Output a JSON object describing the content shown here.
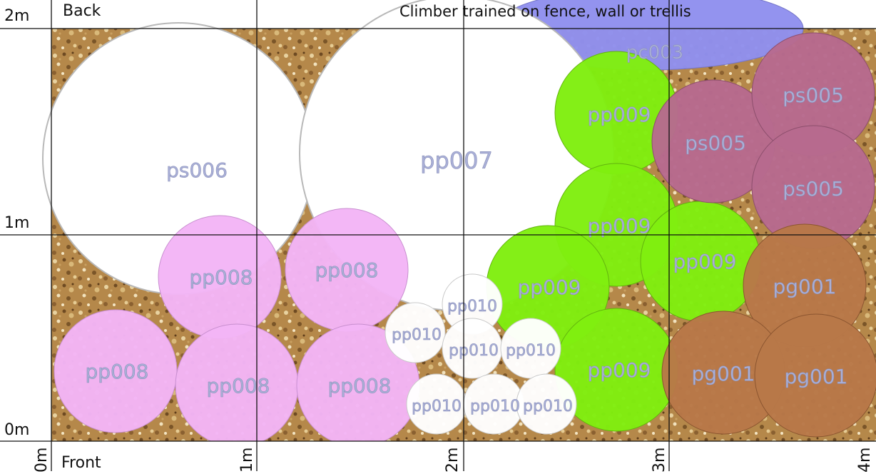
{
  "title": "Climber trained on fence, wall or trellis",
  "edge_labels": {
    "back": "Back",
    "front": "Front"
  },
  "y_axis": [
    "2m",
    "1m",
    "0m"
  ],
  "x_axis": [
    "0m",
    "1m",
    "2m",
    "3m",
    "4m"
  ],
  "colors": {
    "pink": "#f3b5f6",
    "green": "#80ee10",
    "mauve": "#b76a8e",
    "brown": "#b87848",
    "blue": "#8f90ee",
    "white": "#ffffff",
    "soil": "#b5884a"
  },
  "plants": [
    {
      "id": "pc003",
      "color": "blue"
    },
    {
      "id": "ps006",
      "color": "white"
    },
    {
      "id": "pp007",
      "color": "white"
    },
    {
      "id": "pp009",
      "color": "green"
    },
    {
      "id": "pp009",
      "color": "green"
    },
    {
      "id": "pp009",
      "color": "green"
    },
    {
      "id": "pp009",
      "color": "green"
    },
    {
      "id": "pp009",
      "color": "green"
    },
    {
      "id": "ps005",
      "color": "mauve"
    },
    {
      "id": "ps005",
      "color": "mauve"
    },
    {
      "id": "ps005",
      "color": "mauve"
    },
    {
      "id": "pg001",
      "color": "brown"
    },
    {
      "id": "pg001",
      "color": "brown"
    },
    {
      "id": "pg001",
      "color": "brown"
    },
    {
      "id": "pp008",
      "color": "pink"
    },
    {
      "id": "pp008",
      "color": "pink"
    },
    {
      "id": "pp008",
      "color": "pink"
    },
    {
      "id": "pp008",
      "color": "pink"
    },
    {
      "id": "pp008",
      "color": "pink"
    },
    {
      "id": "pp010",
      "color": "white"
    },
    {
      "id": "pp010",
      "color": "white"
    },
    {
      "id": "pp010",
      "color": "white"
    },
    {
      "id": "pp010",
      "color": "white"
    },
    {
      "id": "pp010",
      "color": "white"
    },
    {
      "id": "pp010",
      "color": "white"
    },
    {
      "id": "pp010",
      "color": "white"
    }
  ]
}
